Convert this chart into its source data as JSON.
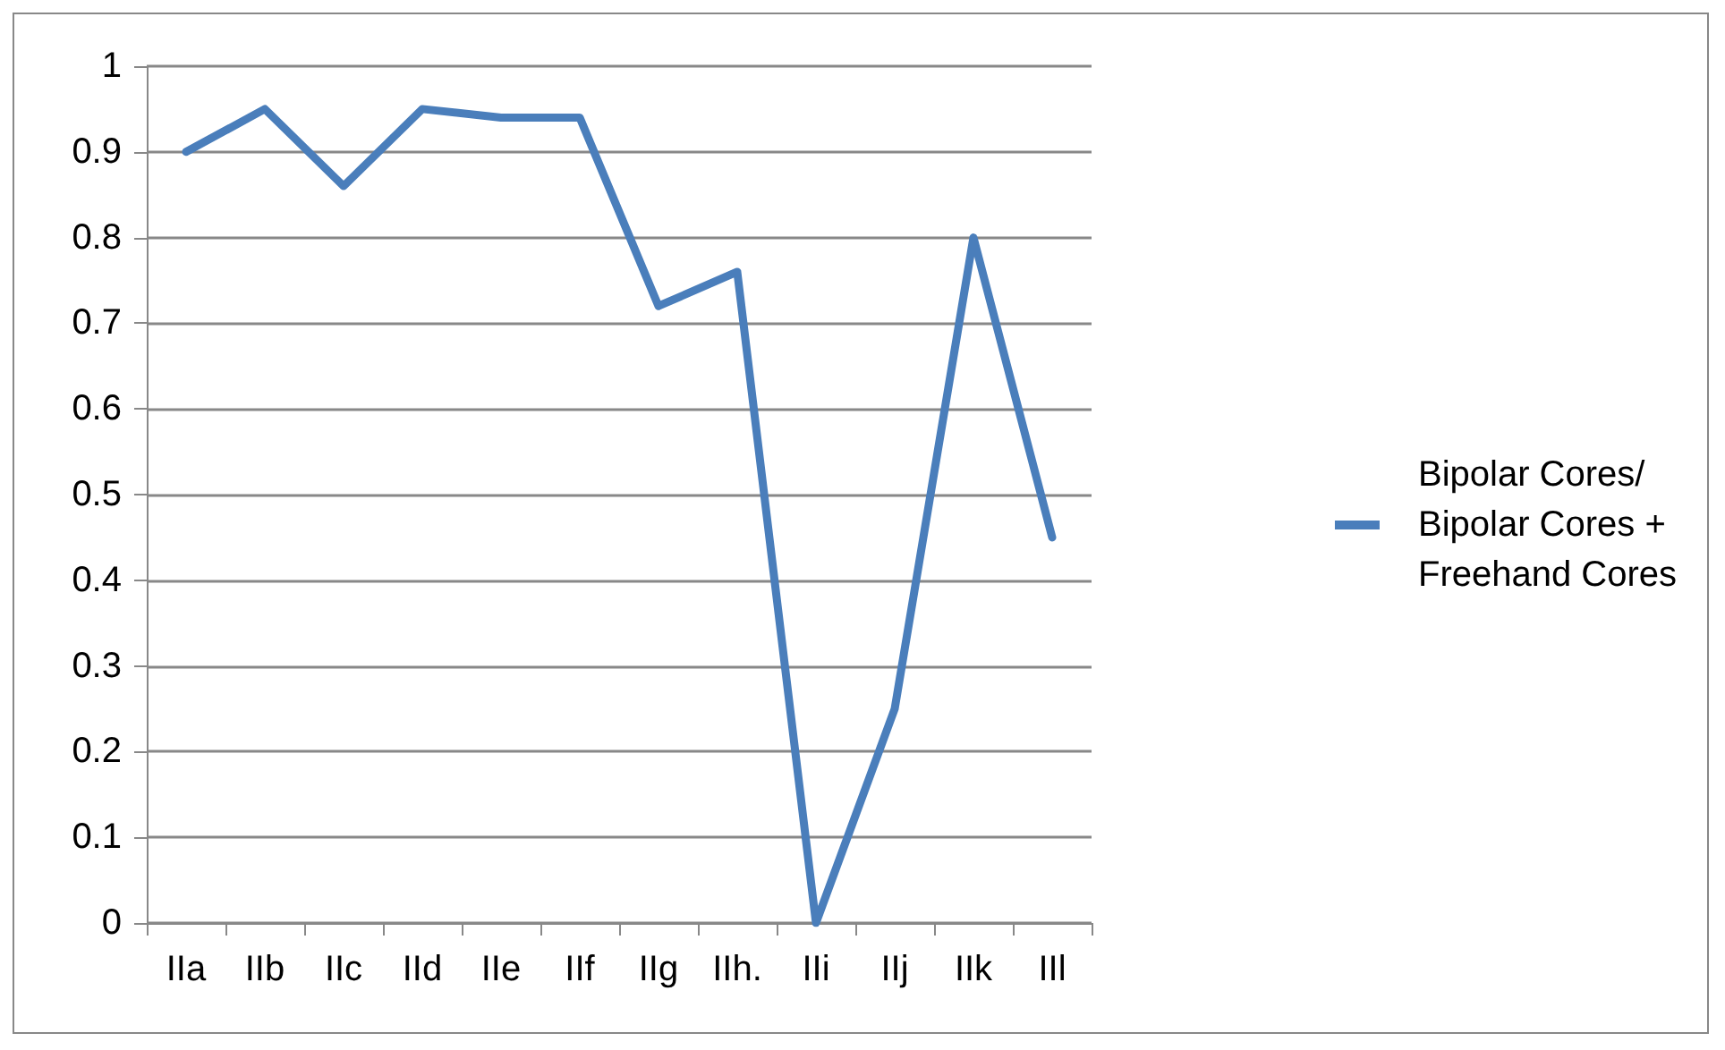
{
  "chart_data": {
    "type": "line",
    "categories": [
      "IIa",
      "IIb",
      "IIc",
      "IId",
      "IIe",
      "IIf",
      "IIg",
      "IIh.",
      "IIi",
      "IIj",
      "IIk",
      "IIl"
    ],
    "series": [
      {
        "name": "Bipolar Cores/Bipolar Cores + Freehand Cores",
        "color": "#4a7ebb",
        "values": [
          0.9,
          0.95,
          0.86,
          0.95,
          0.94,
          0.94,
          0.72,
          0.76,
          0,
          0.25,
          0.8,
          0.45
        ]
      }
    ],
    "ylim": [
      0,
      1
    ],
    "yticks": [
      0,
      0.1,
      0.2,
      0.3,
      0.4,
      0.5,
      0.6,
      0.7,
      0.8,
      0.9,
      1
    ],
    "grid": "y",
    "legend": "right",
    "marker": "none",
    "line_style": "solid"
  }
}
